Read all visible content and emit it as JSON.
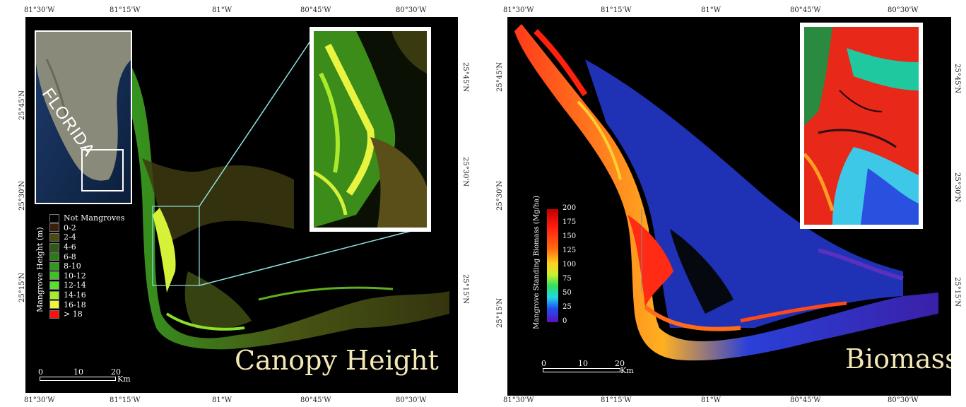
{
  "left_panel": {
    "title": "Canopy Height",
    "top_ticks": [
      "81°30'W",
      "81°15'W",
      "81°W",
      "80°45'W",
      "80°30'W"
    ],
    "bottom_ticks": [
      "81°30'W",
      "81°15'W",
      "81°W",
      "80°45'W",
      "80°30'W"
    ],
    "left_ticks": [
      "25°45'N",
      "25°30'N",
      "25°15'N"
    ],
    "right_ticks": [
      "25°45'N",
      "25°30'N",
      "25°15'N"
    ],
    "inset_label": "Florida",
    "legend_title": "Mangrove Height (m)",
    "legend": [
      {
        "label": "Not Mangroves",
        "color": "#000000"
      },
      {
        "label": "0-2",
        "color": "#3a1e10"
      },
      {
        "label": "2-4",
        "color": "#4a4a12"
      },
      {
        "label": "4-6",
        "color": "#2f5a14"
      },
      {
        "label": "6-8",
        "color": "#2e7a18"
      },
      {
        "label": "8-10",
        "color": "#2f9a1c"
      },
      {
        "label": "10-12",
        "color": "#3cc323"
      },
      {
        "label": "12-14",
        "color": "#57e02c"
      },
      {
        "label": "14-16",
        "color": "#a7ec2a"
      },
      {
        "label": "16-18",
        "color": "#ecf53a"
      },
      {
        "label": "> 18",
        "color": "#ff1010"
      }
    ],
    "scale_labels": [
      "0",
      "10",
      "20"
    ],
    "scale_unit": "Km"
  },
  "right_panel": {
    "title": "Biomass",
    "top_ticks": [
      "81°30'W",
      "81°15'W",
      "81°W",
      "80°45'W",
      "80°30'W"
    ],
    "bottom_ticks": [
      "81°30'W",
      "81°15'W",
      "81°W",
      "80°45'W",
      "80°30'W"
    ],
    "left_ticks": [
      "25°45'N",
      "25°30'N",
      "25°15'N"
    ],
    "right_ticks": [
      "25°45'N",
      "25°30'N",
      "25°15'N"
    ],
    "colorbar_title": "Mangrove Standing Biomass (Mg/ha)",
    "colorbar_ticks": [
      "200",
      "175",
      "150",
      "125",
      "100",
      "75",
      "50",
      "25",
      "0"
    ],
    "scale_labels": [
      "0",
      "10",
      "20"
    ],
    "scale_unit": "Km"
  },
  "colors": {
    "background": "#000000",
    "title_text": "#f3e7b6",
    "inset_frame": "#ffffff",
    "zoom_lines": "#8fe3e0"
  }
}
